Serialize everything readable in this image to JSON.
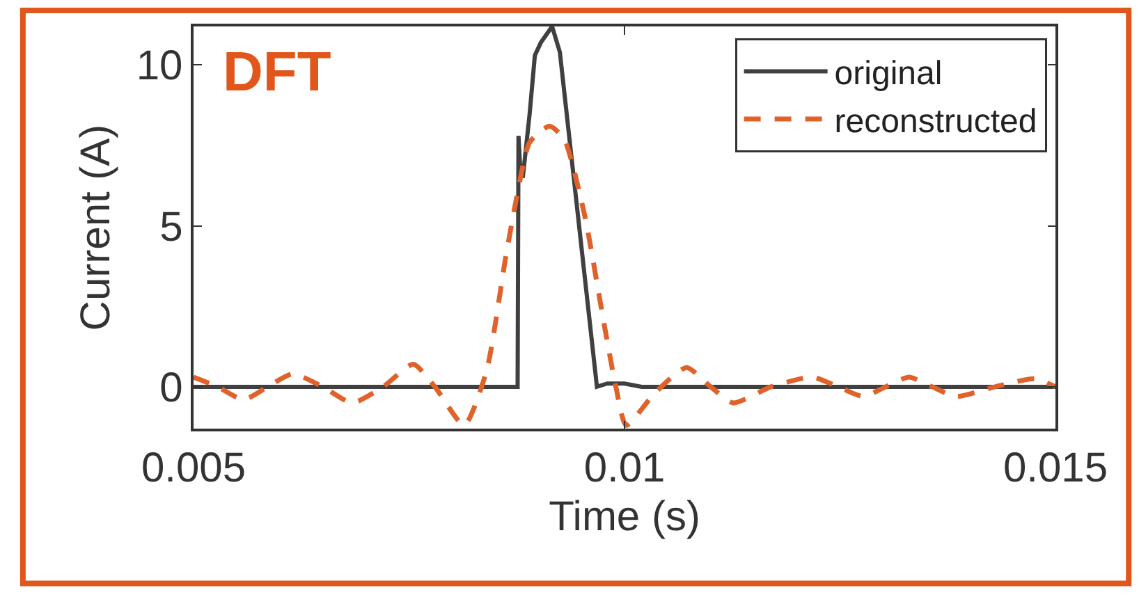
{
  "chart_data": {
    "type": "line",
    "xlabel": "Time (s)",
    "ylabel": "Current (A)",
    "annotations": [
      "DFT"
    ],
    "xlim": [
      0.005,
      0.015
    ],
    "xticks": [
      0.005,
      0.01,
      0.015
    ],
    "ylim": [
      -1.3,
      11.2
    ],
    "yticks": [
      0,
      5,
      10
    ],
    "legend": "top right",
    "marker": "none",
    "series": [
      {
        "name": "original",
        "color": "#404040",
        "line_style": "solid",
        "x": [
          0.005,
          0.006,
          0.007,
          0.008,
          0.00876,
          0.00877,
          0.00879,
          0.00882,
          0.0089,
          0.00896,
          0.00903,
          0.00916,
          0.00925,
          0.00968,
          0.0098,
          0.01,
          0.0102,
          0.011,
          0.013,
          0.015
        ],
        "values": [
          0,
          0,
          0,
          0,
          0,
          7.8,
          6.8,
          6.5,
          8.5,
          10.3,
          10.7,
          11.2,
          10.4,
          0,
          0.1,
          0.1,
          0,
          0,
          0,
          0
        ]
      },
      {
        "name": "reconstructed",
        "color": "#e0622a",
        "line_style": "dashed",
        "x": [
          0.005,
          0.00528,
          0.00558,
          0.00586,
          0.00615,
          0.0065,
          0.00684,
          0.0072,
          0.00755,
          0.0078,
          0.00814,
          0.0084,
          0.00862,
          0.00875,
          0.0089,
          0.00913,
          0.0093,
          0.00954,
          0.00976,
          0.0099,
          0.01002,
          0.01035,
          0.01072,
          0.011,
          0.01126,
          0.0117,
          0.01218,
          0.01248,
          0.01277,
          0.01303,
          0.0133,
          0.01357,
          0.01385,
          0.0143,
          0.01476,
          0.015
        ],
        "values": [
          0.3,
          0,
          -0.4,
          0,
          0.4,
          0,
          -0.5,
          0,
          0.7,
          0,
          -1.2,
          0.5,
          4.0,
          5.9,
          7.6,
          8.1,
          7.7,
          5.3,
          2.0,
          0,
          -1.2,
          -0.2,
          0.6,
          0,
          -0.5,
          0,
          0.3,
          0,
          -0.3,
          0,
          0.3,
          0,
          -0.3,
          0,
          0.25,
          0
        ]
      }
    ]
  }
}
